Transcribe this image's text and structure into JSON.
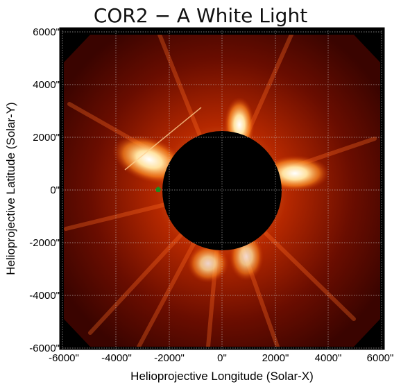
{
  "title": "COR2 − A White Light",
  "axes": {
    "xlabel": "Helioprojective Longitude (Solar-X)",
    "ylabel": "Helioprojective Latitude (Solar-Y)",
    "xticks": [
      "-6000\"",
      "-4000\"",
      "-2000\"",
      "0\"",
      "2000\"",
      "4000\"",
      "6000\""
    ],
    "yticks": [
      "6000\"",
      "4000\"",
      "2000\"",
      "0\"",
      "-2000\"",
      "-4000\"",
      "-6000\""
    ]
  },
  "colors": {
    "background": "#000000",
    "corona_dark": "#5a0a00",
    "corona_mid": "#b02a00",
    "corona_bright": "#ffe0a0",
    "marker": "#1e8a1e"
  }
}
